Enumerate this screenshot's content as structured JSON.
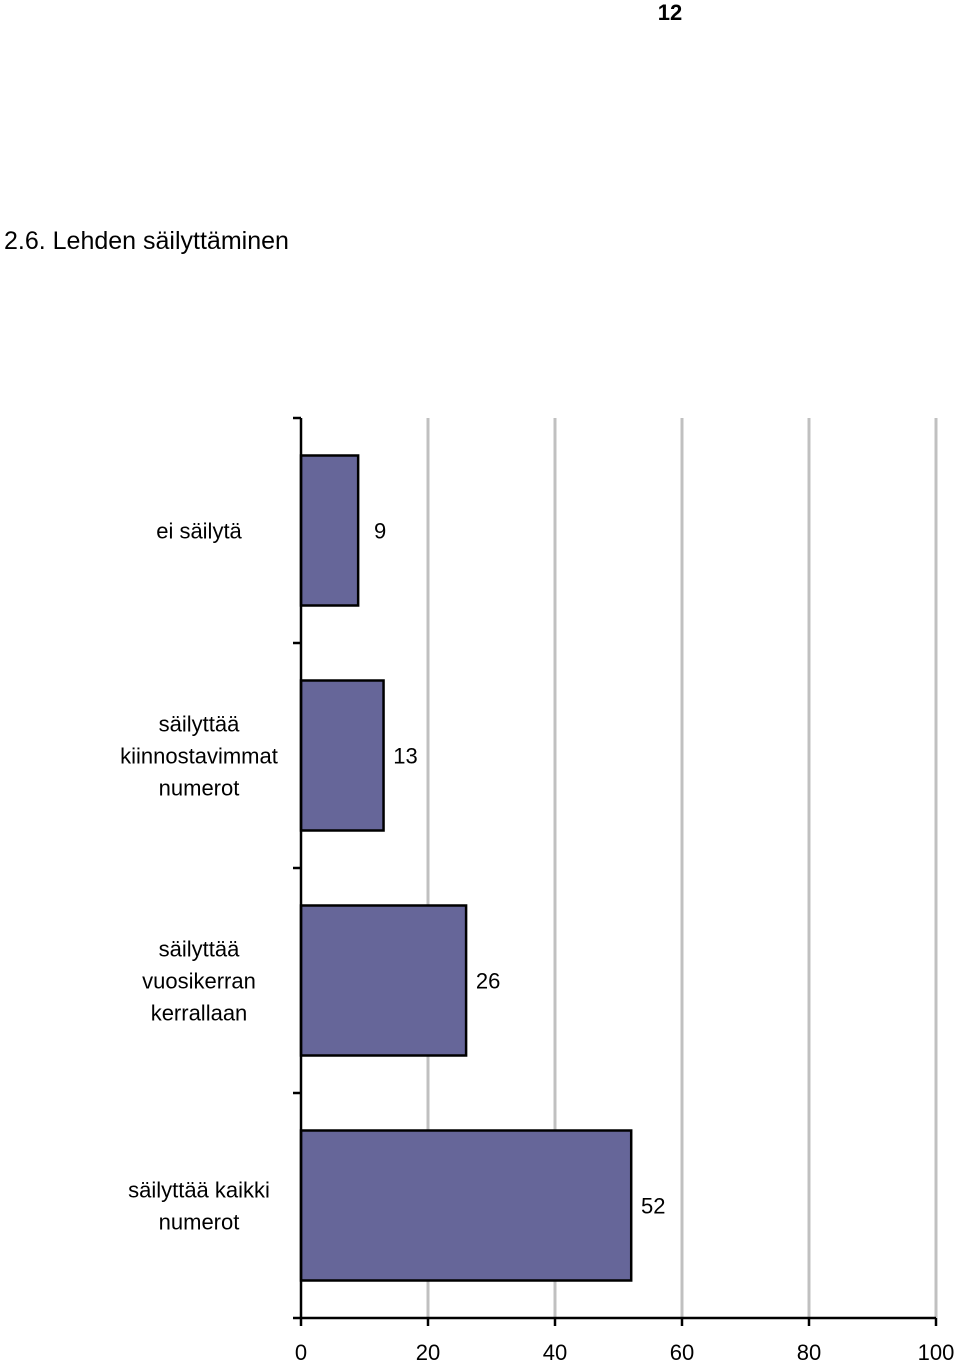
{
  "page": {
    "page_number": "12",
    "section_heading": "2.6. Lehden säilyttäminen"
  },
  "chart_data": {
    "type": "bar",
    "orientation": "horizontal",
    "title": "",
    "xlabel": "",
    "ylabel": "",
    "categories": [
      [
        "ei säilytä"
      ],
      [
        "säilyttää",
        "kiinnostavimmat",
        "numerot"
      ],
      [
        "säilyttää",
        "vuosikerran",
        "kerrallaan"
      ],
      [
        "säilyttää kaikki",
        "numerot"
      ]
    ],
    "values": [
      9,
      13,
      26,
      52
    ],
    "data_labels": [
      "9",
      "13",
      "26",
      "52"
    ],
    "xlim": [
      0,
      100
    ],
    "x_ticks": [
      0,
      20,
      40,
      60,
      80,
      100
    ],
    "x_tick_labels": [
      "0",
      "20",
      "40",
      "60",
      "80",
      "100"
    ],
    "grid": true,
    "legend": "none",
    "colors": {
      "bar_fill": "#666699",
      "bar_stroke": "#000000",
      "grid": "#c0c0c0",
      "axis": "#000000"
    }
  }
}
